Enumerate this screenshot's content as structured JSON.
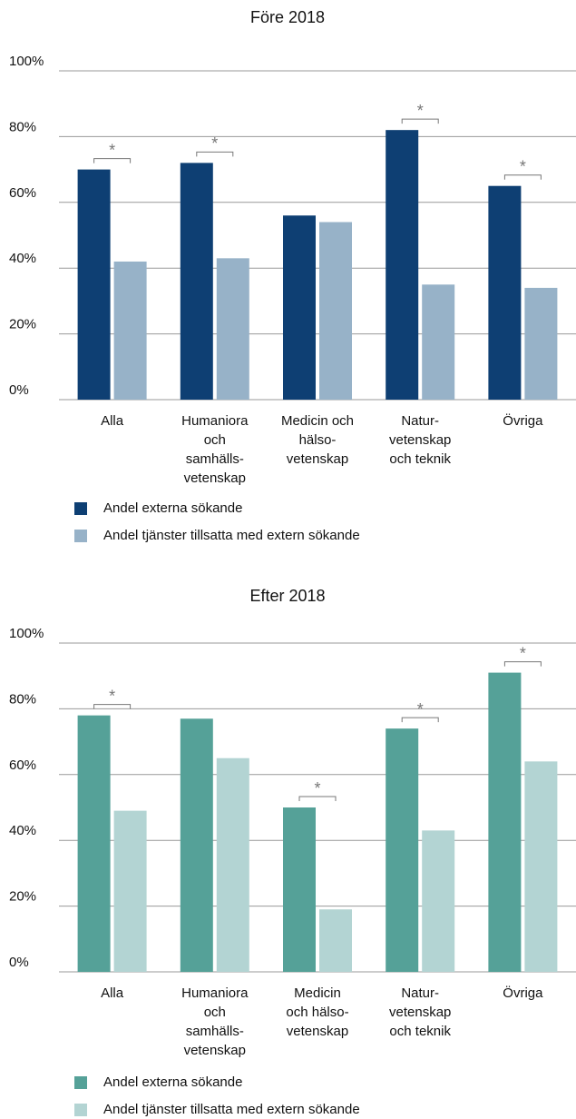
{
  "chart_data": [
    {
      "type": "bar",
      "title": "Före 2018",
      "categories": [
        [
          "Alla"
        ],
        [
          "Humaniora",
          "och",
          "samhälls-",
          "vetenskap"
        ],
        [
          "Medicin och",
          "hälso-",
          "vetenskap"
        ],
        [
          "Natur-",
          "vetenskap",
          "och teknik"
        ],
        [
          "Övriga"
        ]
      ],
      "series": [
        {
          "name": "Andel externa sökande",
          "color": "#0e3f73",
          "values": [
            70,
            72,
            56,
            82,
            65
          ]
        },
        {
          "name": "Andel tjänster tillsatta med extern sökande",
          "color": "#97b2c8",
          "values": [
            42,
            43,
            54,
            35,
            34
          ]
        }
      ],
      "annotations": [
        "*",
        "*",
        null,
        "*",
        "*"
      ],
      "ylim": [
        0,
        100
      ],
      "yticks": [
        {
          "value": 0,
          "label": "0%"
        },
        {
          "value": 20,
          "label": "20%"
        },
        {
          "value": 40,
          "label": "40%"
        },
        {
          "value": 60,
          "label": "60%"
        },
        {
          "value": 80,
          "label": "80%"
        },
        {
          "value": 100,
          "label": "100%"
        }
      ],
      "grid": true
    },
    {
      "type": "bar",
      "title": "Efter 2018",
      "categories": [
        [
          "Alla"
        ],
        [
          "Humaniora",
          "och",
          "samhälls-",
          "vetenskap"
        ],
        [
          "Medicin",
          "och hälso-",
          "vetenskap"
        ],
        [
          "Natur-",
          "vetenskap",
          "och teknik"
        ],
        [
          "Övriga"
        ]
      ],
      "series": [
        {
          "name": "Andel externa sökande",
          "color": "#55a198",
          "values": [
            78,
            77,
            50,
            74,
            91
          ]
        },
        {
          "name": "Andel tjänster tillsatta med extern sökande",
          "color": "#b3d4d3",
          "values": [
            49,
            65,
            19,
            43,
            64
          ]
        }
      ],
      "annotations": [
        "*",
        null,
        "*",
        "*",
        "*"
      ],
      "ylim": [
        0,
        100
      ],
      "yticks": [
        {
          "value": 0,
          "label": "0%"
        },
        {
          "value": 20,
          "label": "20%"
        },
        {
          "value": 40,
          "label": "40%"
        },
        {
          "value": 60,
          "label": "60%"
        },
        {
          "value": 80,
          "label": "80%"
        },
        {
          "value": 100,
          "label": "100%"
        }
      ],
      "grid": true
    }
  ]
}
